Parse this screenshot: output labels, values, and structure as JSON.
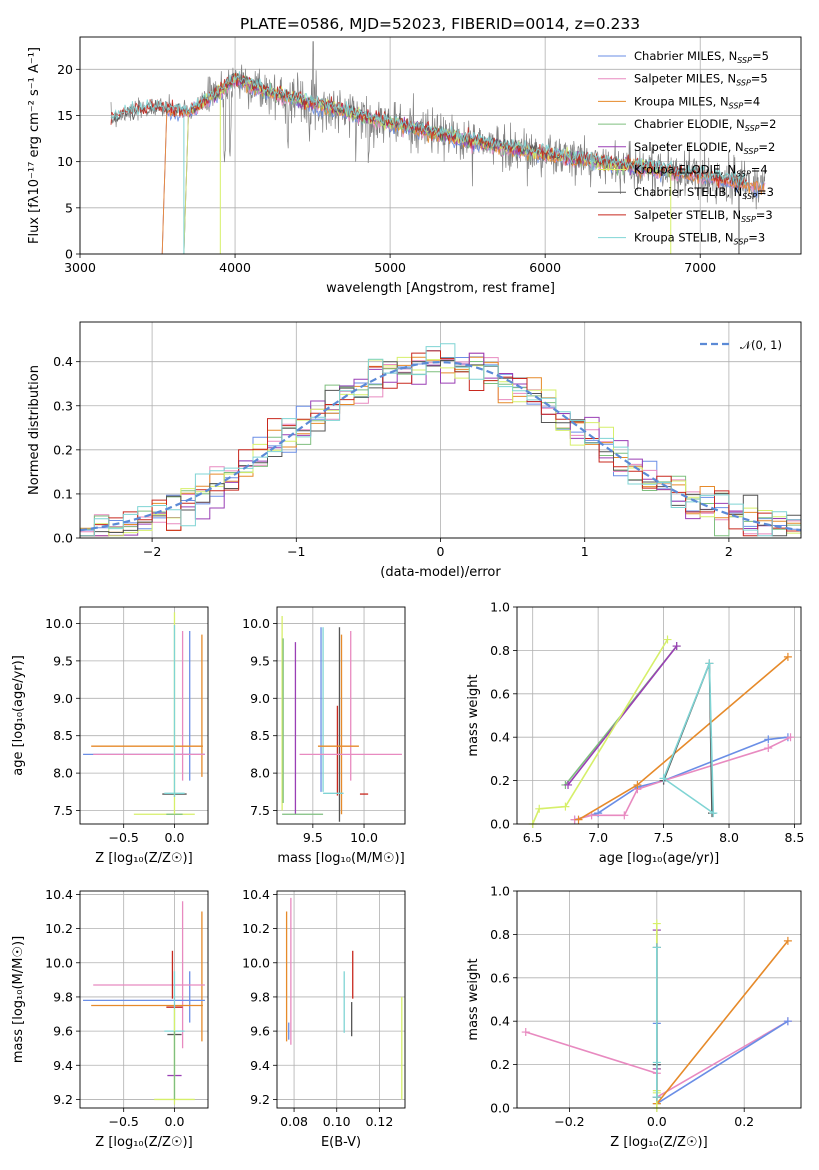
{
  "title": "PLATE=0586, MJD=52023, FIBERID=0014, z=0.233",
  "colors": {
    "Chabrier MILES": "#6a8ee6",
    "Salpeter MILES": "#e88ac0",
    "Kroupa MILES": "#e68a2a",
    "Chabrier ELODIE": "#7fbf7f",
    "Salpeter ELODIE": "#9a3fb5",
    "Kroupa ELODIE": "#d6ef6a",
    "Chabrier STELIB": "#555555",
    "Salpeter STELIB": "#c8281e",
    "Kroupa STELIB": "#7fd4d4",
    "data": "#808080",
    "gauss": "#5b8ad6",
    "grid": "#b0b0b0"
  },
  "chart_data": [
    {
      "type": "line",
      "name": "spectrum",
      "xlabel": "wavelength [Angstrom, rest frame]",
      "ylabel": "Flux [fλ10⁻¹⁷ erg cm⁻² s⁻¹ A⁻¹]",
      "xlim": [
        3000,
        7650
      ],
      "ylim": [
        0,
        23.5
      ],
      "xticks": [
        "3000",
        "4000",
        "5000",
        "6000",
        "7000"
      ],
      "yticks": [
        "0",
        "5",
        "10",
        "15",
        "20"
      ],
      "legend": [
        {
          "label": "Chabrier MILES, N",
          "sub": "SSP",
          "suffix": "=5"
        },
        {
          "label": "Salpeter MILES, N",
          "sub": "SSP",
          "suffix": "=5"
        },
        {
          "label": "Kroupa MILES, N",
          "sub": "SSP",
          "suffix": "=4"
        },
        {
          "label": "Chabrier ELODIE, N",
          "sub": "SSP",
          "suffix": "=2"
        },
        {
          "label": "Salpeter ELODIE, N",
          "sub": "SSP",
          "suffix": "=2"
        },
        {
          "label": "Kroupa ELODIE, N",
          "sub": "SSP",
          "suffix": "=4"
        },
        {
          "label": "Chabrier STELIB, N",
          "sub": "SSP",
          "suffix": "=3"
        },
        {
          "label": "Salpeter STELIB, N",
          "sub": "SSP",
          "suffix": "=3"
        },
        {
          "label": "Kroupa STELIB, N",
          "sub": "SSP",
          "suffix": "=3"
        }
      ],
      "legend_position": "top-right",
      "continuum": [
        [
          3200,
          14.5
        ],
        [
          3300,
          15.3
        ],
        [
          3500,
          15.8
        ],
        [
          3700,
          15.4
        ],
        [
          3900,
          17.5
        ],
        [
          4000,
          19.0
        ],
        [
          4200,
          17.6
        ],
        [
          4500,
          16.3
        ],
        [
          5000,
          14.2
        ],
        [
          5500,
          12.3
        ],
        [
          6000,
          10.8
        ],
        [
          6500,
          9.6
        ],
        [
          7000,
          8.5
        ],
        [
          7400,
          7.3
        ]
      ],
      "grid": true
    },
    {
      "type": "histogram",
      "name": "residuals",
      "xlabel": "(data-model)/error",
      "ylabel": "Normed distribution",
      "xlim": [
        -2.5,
        2.5
      ],
      "ylim": [
        0,
        0.49
      ],
      "xticks": [
        "−2",
        "−1",
        "0",
        "1",
        "2"
      ],
      "yticks": [
        "0.0",
        "0.1",
        "0.2",
        "0.3",
        "0.4"
      ],
      "gauss_label": "𝒩(0, 1)",
      "legend_position": "top-right",
      "bin_width": 0.1,
      "grid": true
    },
    {
      "type": "errorbar",
      "name": "age-vs-metallicity",
      "xlabel": "Z [log₁₀(Z/Z☉)]",
      "ylabel": "age  [log₁₀(age/yr)]",
      "xlim": [
        -0.93,
        0.33
      ],
      "ylim": [
        7.32,
        10.22
      ],
      "xticks": [
        "−0.5",
        "0.0"
      ],
      "xtick_values": [
        -0.5,
        0.0
      ],
      "yticks": [
        "7.5",
        "8.0",
        "8.5",
        "9.0",
        "9.5",
        "10.0"
      ],
      "ytick_values": [
        7.5,
        8.0,
        8.5,
        9.0,
        9.5,
        10.0
      ],
      "grid": true,
      "points": [
        {
          "model": "Chabrier MILES",
          "x": 0.15,
          "xerr": 0.0,
          "y": 8.9,
          "yerr": 1.0
        },
        {
          "model": "Salpeter MILES",
          "x": 0.08,
          "xerr": 0.0,
          "y": 8.9,
          "yerr": 1.0
        },
        {
          "model": "Kroupa MILES",
          "x": 0.27,
          "xerr": 0.0,
          "y": 8.9,
          "yerr": 0.95
        },
        {
          "model": "Chabrier MILES",
          "x": -0.3,
          "xerr": 0.6,
          "y": 8.25,
          "yerr": 0.0
        },
        {
          "model": "Salpeter MILES",
          "x": -0.25,
          "xerr": 0.55,
          "y": 8.25,
          "yerr": 0.0
        },
        {
          "model": "Kroupa MILES",
          "x": -0.27,
          "xerr": 0.55,
          "y": 8.36,
          "yerr": 0.0
        },
        {
          "model": "Chabrier STELIB",
          "x": 0.0,
          "xerr": 0.12,
          "y": 7.72,
          "yerr": 0.0
        },
        {
          "model": "Kroupa STELIB",
          "x": 0.0,
          "xerr": 0.1,
          "y": 7.73,
          "yerr": 0.0
        },
        {
          "model": "Kroupa ELODIE",
          "x": -0.1,
          "xerr": 0.3,
          "y": 7.45,
          "yerr": 0.0
        },
        {
          "model": "Chabrier ELODIE",
          "x": 0.0,
          "xerr": 0.08,
          "y": 7.45,
          "yerr": 0.0
        },
        {
          "model": "Kroupa ELODIE",
          "x": 0.0,
          "xerr": 0.0,
          "y": 8.8,
          "yerr": 1.35
        },
        {
          "model": "Kroupa STELIB",
          "x": 0.0,
          "xerr": 0.0,
          "y": 8.83,
          "yerr": 1.15
        }
      ]
    },
    {
      "type": "errorbar",
      "name": "age-vs-mass",
      "xlabel": "mass [log₁₀(M/M☉)]",
      "ylabel": "",
      "xlim": [
        9.15,
        10.4
      ],
      "ylim": [
        7.32,
        10.22
      ],
      "xticks": [
        "9.5",
        "10.0"
      ],
      "xtick_values": [
        9.5,
        10.0
      ],
      "yticks": [
        "7.5",
        "8.0",
        "8.5",
        "9.0",
        "9.5",
        "10.0"
      ],
      "ytick_values": [
        7.5,
        8.0,
        8.5,
        9.0,
        9.5,
        10.0
      ],
      "grid": true,
      "points": [
        {
          "model": "Kroupa ELODIE",
          "x": 9.2,
          "xerr": 0.0,
          "y": 8.8,
          "yerr": 1.3
        },
        {
          "model": "Chabrier ELODIE",
          "x": 9.21,
          "xerr": 0.0,
          "y": 8.7,
          "yerr": 1.1
        },
        {
          "model": "Salpeter ELODIE",
          "x": 9.33,
          "xerr": 0.0,
          "y": 8.6,
          "yerr": 1.15
        },
        {
          "model": "Chabrier MILES",
          "x": 9.58,
          "xerr": 0.0,
          "y": 8.85,
          "yerr": 1.1
        },
        {
          "model": "Kroupa STELIB",
          "x": 9.6,
          "xerr": 0.0,
          "y": 8.85,
          "yerr": 1.1
        },
        {
          "model": "Chabrier STELIB",
          "x": 9.76,
          "xerr": 0.0,
          "y": 8.65,
          "yerr": 1.3
        },
        {
          "model": "Salpeter STELIB",
          "x": 9.74,
          "xerr": 0.0,
          "y": 8.3,
          "yerr": 0.6
        },
        {
          "model": "Kroupa MILES",
          "x": 9.78,
          "xerr": 0.0,
          "y": 8.65,
          "yerr": 1.2
        },
        {
          "model": "Salpeter MILES",
          "x": 9.87,
          "xerr": 0.0,
          "y": 8.9,
          "yerr": 1.0
        },
        {
          "model": "Kroupa MILES",
          "x": 9.75,
          "xerr": 0.2,
          "y": 8.36,
          "yerr": 0.0
        },
        {
          "model": "Salpeter MILES",
          "x": 9.87,
          "xerr": 0.5,
          "y": 8.25,
          "yerr": 0.0
        },
        {
          "model": "Chabrier ELODIE",
          "x": 9.4,
          "xerr": 0.2,
          "y": 7.45,
          "yerr": 0.0
        },
        {
          "model": "Kroupa STELIB",
          "x": 9.7,
          "xerr": 0.1,
          "y": 7.73,
          "yerr": 0.0
        },
        {
          "model": "Salpeter STELIB",
          "x": 10.0,
          "xerr": 0.04,
          "y": 7.72,
          "yerr": 0.0
        }
      ]
    },
    {
      "type": "line",
      "name": "weight-vs-age",
      "xlabel": "age  [log₁₀(age/yr)]",
      "ylabel": "mass weight",
      "xlim": [
        6.38,
        8.55
      ],
      "ylim": [
        0,
        1.0
      ],
      "xticks": [
        "6.5",
        "7.0",
        "7.5",
        "8.0",
        "8.5"
      ],
      "xtick_values": [
        6.5,
        7.0,
        7.5,
        8.0,
        8.5
      ],
      "yticks": [
        "0.0",
        "0.2",
        "0.4",
        "0.6",
        "0.8",
        "1.0"
      ],
      "ytick_values": [
        0.0,
        0.2,
        0.4,
        0.6,
        0.8,
        1.0
      ],
      "grid": true,
      "series": [
        {
          "model": "Chabrier MILES",
          "x": [
            6.82,
            7.0,
            7.3,
            7.5,
            8.3,
            8.45
          ],
          "y": [
            0.02,
            0.05,
            0.17,
            0.2,
            0.39,
            0.4
          ]
        },
        {
          "model": "Salpeter MILES",
          "x": [
            6.82,
            6.95,
            7.2,
            7.3,
            7.5,
            8.3,
            8.47
          ],
          "y": [
            0.02,
            0.04,
            0.04,
            0.16,
            0.2,
            0.35,
            0.4
          ]
        },
        {
          "model": "Kroupa MILES",
          "x": [
            6.85,
            7.3,
            8.45
          ],
          "y": [
            0.02,
            0.18,
            0.77
          ]
        },
        {
          "model": "Chabrier ELODIE",
          "x": [
            6.75,
            7.6
          ],
          "y": [
            0.18,
            0.82
          ]
        },
        {
          "model": "Salpeter ELODIE",
          "x": [
            6.77,
            7.6
          ],
          "y": [
            0.18,
            0.82
          ]
        },
        {
          "model": "Kroupa ELODIE",
          "x": [
            6.5,
            6.55,
            6.75,
            7.53
          ],
          "y": [
            0.0,
            0.07,
            0.08,
            0.85
          ]
        },
        {
          "model": "Chabrier STELIB",
          "x": [
            7.5,
            7.85,
            7.87
          ],
          "y": [
            0.2,
            0.74,
            0.05
          ]
        },
        {
          "model": "Kroupa STELIB",
          "x": [
            7.5,
            7.85,
            7.88,
            7.5
          ],
          "y": [
            0.21,
            0.74,
            0.05,
            0.21
          ]
        }
      ]
    },
    {
      "type": "errorbar",
      "name": "mass-vs-metallicity",
      "xlabel": "Z [log₁₀(Z/Z☉)]",
      "ylabel": "mass [log₁₀(M/M☉)]",
      "xlim": [
        -0.93,
        0.33
      ],
      "ylim": [
        9.15,
        10.42
      ],
      "xticks": [
        "−0.5",
        "0.0"
      ],
      "xtick_values": [
        -0.5,
        0.0
      ],
      "yticks": [
        "9.2",
        "9.4",
        "9.6",
        "9.8",
        "10.0",
        "10.2",
        "10.4"
      ],
      "ytick_values": [
        9.2,
        9.4,
        9.6,
        9.8,
        10.0,
        10.2,
        10.4
      ],
      "grid": true,
      "points": [
        {
          "model": "Salpeter MILES",
          "x": 0.08,
          "xerr": 0.0,
          "y": 9.93,
          "yerr": 0.43
        },
        {
          "model": "Kroupa MILES",
          "x": 0.27,
          "xerr": 0.0,
          "y": 9.92,
          "yerr": 0.38
        },
        {
          "model": "Chabrier MILES",
          "x": 0.15,
          "xerr": 0.0,
          "y": 9.8,
          "yerr": 0.15
        },
        {
          "model": "Salpeter MILES",
          "x": -0.25,
          "xerr": 0.55,
          "y": 9.87,
          "yerr": 0.0
        },
        {
          "model": "Chabrier MILES",
          "x": -0.3,
          "xerr": 0.6,
          "y": 9.78,
          "yerr": 0.0
        },
        {
          "model": "Kroupa MILES",
          "x": -0.27,
          "xerr": 0.55,
          "y": 9.75,
          "yerr": 0.0
        },
        {
          "model": "Salpeter STELIB",
          "x": 0.0,
          "xerr": 0.08,
          "y": 9.74,
          "yerr": 0.0
        },
        {
          "model": "Salpeter STELIB",
          "x": -0.02,
          "xerr": 0.0,
          "y": 9.93,
          "yerr": 0.14
        },
        {
          "model": "Kroupa STELIB",
          "x": 0.0,
          "xerr": 0.1,
          "y": 9.6,
          "yerr": 0.0
        },
        {
          "model": "Kroupa STELIB",
          "x": 0.0,
          "xerr": 0.0,
          "y": 9.77,
          "yerr": 0.18
        },
        {
          "model": "Chabrier STELIB",
          "x": 0.0,
          "xerr": 0.07,
          "y": 9.58,
          "yerr": 0.0
        },
        {
          "model": "Salpeter ELODIE",
          "x": 0.0,
          "xerr": 0.07,
          "y": 9.34,
          "yerr": 0.0
        },
        {
          "model": "Kroupa ELODIE",
          "x": 0.0,
          "xerr": 0.2,
          "y": 9.2,
          "yerr": 0.0
        },
        {
          "model": "Kroupa ELODIE",
          "x": 0.0,
          "xerr": 0.0,
          "y": 9.45,
          "yerr": 0.28
        },
        {
          "model": "Chabrier ELODIE",
          "x": 0.0,
          "xerr": 0.0,
          "y": 9.4,
          "yerr": 0.2
        }
      ]
    },
    {
      "type": "errorbar",
      "name": "mass-vs-ebv",
      "xlabel": "E(B-V)",
      "ylabel": "",
      "xlim": [
        0.072,
        0.132
      ],
      "ylim": [
        9.15,
        10.42
      ],
      "xticks": [
        "0.08",
        "0.10",
        "0.12"
      ],
      "xtick_values": [
        0.08,
        0.1,
        0.12
      ],
      "yticks": [
        "9.2",
        "9.4",
        "9.6",
        "9.8",
        "10.0",
        "10.2",
        "10.4"
      ],
      "ytick_values": [
        9.2,
        9.4,
        9.6,
        9.8,
        10.0,
        10.2,
        10.4
      ],
      "grid": true,
      "points": [
        {
          "model": "Kroupa MILES",
          "x": 0.0765,
          "xerr": 0.0,
          "y": 9.92,
          "yerr": 0.38
        },
        {
          "model": "Salpeter MILES",
          "x": 0.0785,
          "xerr": 0.0,
          "y": 9.95,
          "yerr": 0.43
        },
        {
          "model": "Chabrier MILES",
          "x": 0.0775,
          "xerr": 0.0,
          "y": 9.6,
          "yerr": 0.05
        },
        {
          "model": "Kroupa STELIB",
          "x": 0.1035,
          "xerr": 0.0,
          "y": 9.77,
          "yerr": 0.18
        },
        {
          "model": "Salpeter STELIB",
          "x": 0.1075,
          "xerr": 0.0,
          "y": 9.93,
          "yerr": 0.14
        },
        {
          "model": "Chabrier STELIB",
          "x": 0.107,
          "xerr": 0.0,
          "y": 9.67,
          "yerr": 0.1
        },
        {
          "model": "Kroupa ELODIE",
          "x": 0.1305,
          "xerr": 0.0,
          "y": 9.5,
          "yerr": 0.3
        }
      ]
    },
    {
      "type": "line",
      "name": "weight-vs-metallicity",
      "xlabel": "Z [log₁₀(Z/Z☉)]",
      "ylabel": "mass weight",
      "xlim": [
        -0.32,
        0.33
      ],
      "ylim": [
        0,
        1.0
      ],
      "xticks": [
        "−0.2",
        "0.0",
        "0.2"
      ],
      "xtick_values": [
        -0.2,
        0.0,
        0.2
      ],
      "yticks": [
        "0.0",
        "0.2",
        "0.4",
        "0.6",
        "0.8",
        "1.0"
      ],
      "ytick_values": [
        0.0,
        0.2,
        0.4,
        0.6,
        0.8,
        1.0
      ],
      "grid": true,
      "series": [
        {
          "model": "Salpeter MILES",
          "x": [
            -0.3,
            0.0,
            0.0,
            0.3
          ],
          "y": [
            0.35,
            0.16,
            0.05,
            0.4
          ]
        },
        {
          "model": "Chabrier MILES",
          "x": [
            0.0,
            0.0,
            0.0,
            0.3
          ],
          "y": [
            0.2,
            0.39,
            0.02,
            0.4
          ]
        },
        {
          "model": "Kroupa MILES",
          "x": [
            0.0,
            0.0,
            0.3
          ],
          "y": [
            0.18,
            0.02,
            0.77
          ]
        },
        {
          "model": "Chabrier ELODIE",
          "x": [
            0.0,
            0.0
          ],
          "y": [
            0.18,
            0.82
          ]
        },
        {
          "model": "Salpeter ELODIE",
          "x": [
            0.0,
            0.0
          ],
          "y": [
            0.18,
            0.82
          ]
        },
        {
          "model": "Kroupa ELODIE",
          "x": [
            0.0,
            0.0,
            0.0,
            0.0
          ],
          "y": [
            0.0,
            0.07,
            0.08,
            0.85
          ]
        },
        {
          "model": "Chabrier STELIB",
          "x": [
            0.0,
            0.0,
            0.0
          ],
          "y": [
            0.2,
            0.74,
            0.05
          ]
        },
        {
          "model": "Kroupa STELIB",
          "x": [
            0.0,
            0.0,
            0.0
          ],
          "y": [
            0.21,
            0.74,
            0.05
          ]
        }
      ]
    }
  ]
}
